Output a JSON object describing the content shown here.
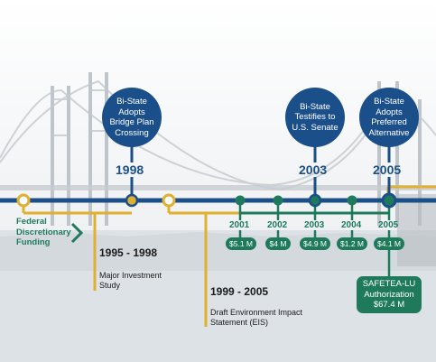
{
  "milestones": [
    {
      "label": "Bi-State Adopts Bridge Plan Crossing",
      "year": "1998"
    },
    {
      "label": "Bi-State Testifies to U.S. Senate",
      "year": "2003"
    },
    {
      "label": "Bi-State Adopts Preferred Alternative",
      "year": "2005"
    }
  ],
  "funding": [
    {
      "year": "2001",
      "amount": "$5.1 M"
    },
    {
      "year": "2002",
      "amount": "$4 M"
    },
    {
      "year": "2003",
      "amount": "$4.9 M"
    },
    {
      "year": "2004",
      "amount": "$1.2 M"
    },
    {
      "year": "2005",
      "amount": "$4.1 M"
    }
  ],
  "federal_label": "Federal Discretionary Funding",
  "range1": {
    "years": "1995 - 1998",
    "label": "Major Investment Study"
  },
  "range2": {
    "years": "1999 - 2005",
    "label": "Draft Environment Impact Statement (EIS)"
  },
  "safetea": {
    "label": "SAFETEA-LU Authorization",
    "amount": "$67.4 M"
  },
  "colors": {
    "navy": "#1b4f8a",
    "teal": "#1f7a5c",
    "gold": "#e0b030"
  }
}
